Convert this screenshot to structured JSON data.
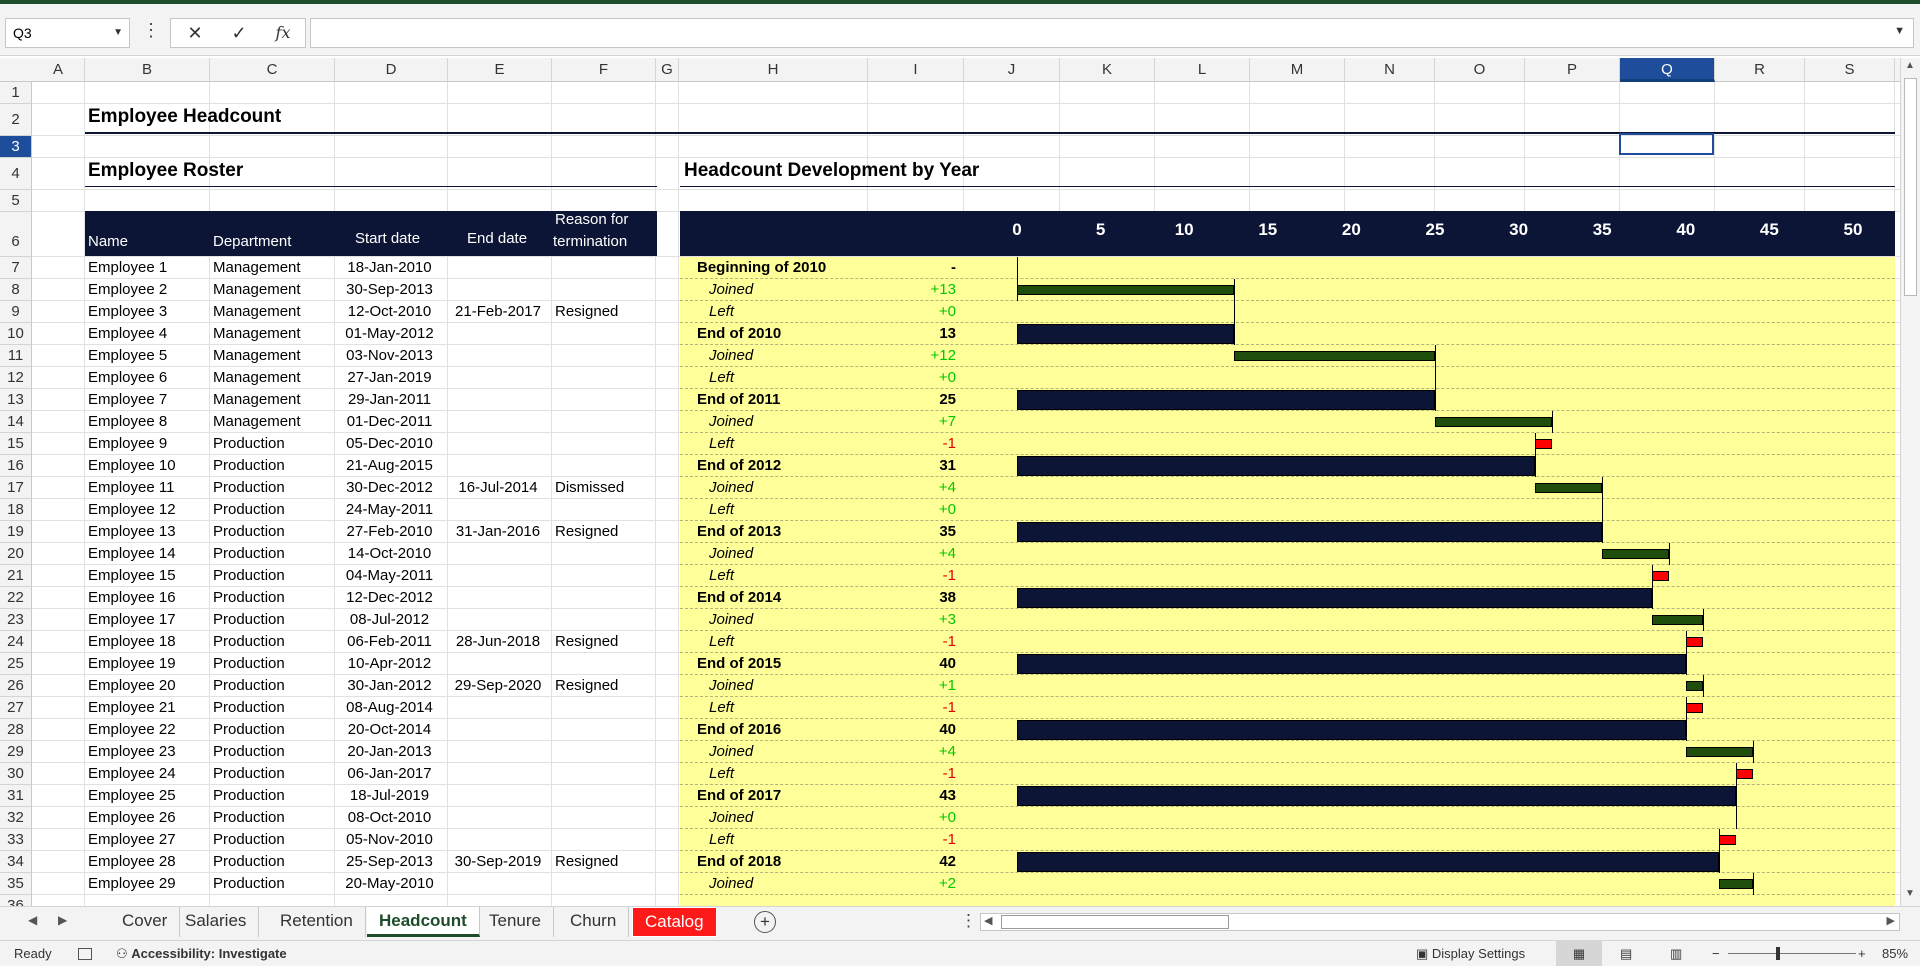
{
  "formula_bar": {
    "name_box": "Q3",
    "cancel_icon": "✕",
    "enter_icon": "✓",
    "fx_icon": "fx",
    "formula": ""
  },
  "columns": [
    "A",
    "B",
    "C",
    "D",
    "E",
    "F",
    "G",
    "H",
    "I",
    "J",
    "K",
    "L",
    "M",
    "N",
    "O",
    "P",
    "Q",
    "R",
    "S"
  ],
  "selected_column": "Q",
  "rows": [
    "1",
    "2",
    "3",
    "4",
    "5",
    "6",
    "7",
    "8",
    "9",
    "10",
    "11",
    "12",
    "13",
    "14",
    "15",
    "16",
    "17",
    "18",
    "19",
    "20",
    "21",
    "22",
    "23",
    "24",
    "25",
    "26",
    "27",
    "28",
    "29",
    "30",
    "31",
    "32",
    "33",
    "34",
    "35",
    "36"
  ],
  "selected_row": "3",
  "titles": {
    "main": "Employee Headcount",
    "roster": "Employee Roster",
    "chart": "Headcount Development by Year"
  },
  "roster_headers": {
    "name": "Name",
    "department": "Department",
    "start": "Start date",
    "end": "End date",
    "reason_1": "Reason for",
    "reason_2": "termination"
  },
  "roster": [
    {
      "name": "Employee 1",
      "dept": "Management",
      "start": "18-Jan-2010",
      "end": "",
      "reason": ""
    },
    {
      "name": "Employee 2",
      "dept": "Management",
      "start": "30-Sep-2013",
      "end": "",
      "reason": ""
    },
    {
      "name": "Employee 3",
      "dept": "Management",
      "start": "12-Oct-2010",
      "end": "21-Feb-2017",
      "reason": "Resigned"
    },
    {
      "name": "Employee 4",
      "dept": "Management",
      "start": "01-May-2012",
      "end": "",
      "reason": ""
    },
    {
      "name": "Employee 5",
      "dept": "Management",
      "start": "03-Nov-2013",
      "end": "",
      "reason": ""
    },
    {
      "name": "Employee 6",
      "dept": "Management",
      "start": "27-Jan-2019",
      "end": "",
      "reason": ""
    },
    {
      "name": "Employee 7",
      "dept": "Management",
      "start": "29-Jan-2011",
      "end": "",
      "reason": ""
    },
    {
      "name": "Employee 8",
      "dept": "Management",
      "start": "01-Dec-2011",
      "end": "",
      "reason": ""
    },
    {
      "name": "Employee 9",
      "dept": "Production",
      "start": "05-Dec-2010",
      "end": "",
      "reason": ""
    },
    {
      "name": "Employee 10",
      "dept": "Production",
      "start": "21-Aug-2015",
      "end": "",
      "reason": ""
    },
    {
      "name": "Employee 11",
      "dept": "Production",
      "start": "30-Dec-2012",
      "end": "16-Jul-2014",
      "reason": "Dismissed"
    },
    {
      "name": "Employee 12",
      "dept": "Production",
      "start": "24-May-2011",
      "end": "",
      "reason": ""
    },
    {
      "name": "Employee 13",
      "dept": "Production",
      "start": "27-Feb-2010",
      "end": "31-Jan-2016",
      "reason": "Resigned"
    },
    {
      "name": "Employee 14",
      "dept": "Production",
      "start": "14-Oct-2010",
      "end": "",
      "reason": ""
    },
    {
      "name": "Employee 15",
      "dept": "Production",
      "start": "04-May-2011",
      "end": "",
      "reason": ""
    },
    {
      "name": "Employee 16",
      "dept": "Production",
      "start": "12-Dec-2012",
      "end": "",
      "reason": ""
    },
    {
      "name": "Employee 17",
      "dept": "Production",
      "start": "08-Jul-2012",
      "end": "",
      "reason": ""
    },
    {
      "name": "Employee 18",
      "dept": "Production",
      "start": "06-Feb-2011",
      "end": "28-Jun-2018",
      "reason": "Resigned"
    },
    {
      "name": "Employee 19",
      "dept": "Production",
      "start": "10-Apr-2012",
      "end": "",
      "reason": ""
    },
    {
      "name": "Employee 20",
      "dept": "Production",
      "start": "30-Jan-2012",
      "end": "29-Sep-2020",
      "reason": "Resigned"
    },
    {
      "name": "Employee 21",
      "dept": "Production",
      "start": "08-Aug-2014",
      "end": "",
      "reason": ""
    },
    {
      "name": "Employee 22",
      "dept": "Production",
      "start": "20-Oct-2014",
      "end": "",
      "reason": ""
    },
    {
      "name": "Employee 23",
      "dept": "Production",
      "start": "20-Jan-2013",
      "end": "",
      "reason": ""
    },
    {
      "name": "Employee 24",
      "dept": "Production",
      "start": "06-Jan-2017",
      "end": "",
      "reason": ""
    },
    {
      "name": "Employee 25",
      "dept": "Production",
      "start": "18-Jul-2019",
      "end": "",
      "reason": ""
    },
    {
      "name": "Employee 26",
      "dept": "Production",
      "start": "08-Oct-2010",
      "end": "",
      "reason": ""
    },
    {
      "name": "Employee 27",
      "dept": "Production",
      "start": "05-Nov-2010",
      "end": "",
      "reason": ""
    },
    {
      "name": "Employee 28",
      "dept": "Production",
      "start": "25-Sep-2013",
      "end": "30-Sep-2019",
      "reason": "Resigned"
    },
    {
      "name": "Employee 29",
      "dept": "Production",
      "start": "20-May-2010",
      "end": "",
      "reason": ""
    }
  ],
  "chart_data": {
    "type": "bar",
    "xlim": [
      0,
      50
    ],
    "ticks": [
      "0",
      "5",
      "10",
      "15",
      "20",
      "25",
      "30",
      "35",
      "40",
      "45",
      "50"
    ],
    "rows": [
      {
        "label": "Beginning of 2010",
        "value": "-",
        "kind": "total",
        "start": 0,
        "end": 0
      },
      {
        "label": "Joined",
        "value": "+13",
        "kind": "joined",
        "start": 0,
        "end": 13
      },
      {
        "label": "Left",
        "value": "+0",
        "kind": "left",
        "start": 13,
        "end": 13
      },
      {
        "label": "End of 2010",
        "value": "13",
        "kind": "total",
        "start": 0,
        "end": 13
      },
      {
        "label": "Joined",
        "value": "+12",
        "kind": "joined",
        "start": 13,
        "end": 25
      },
      {
        "label": "Left",
        "value": "+0",
        "kind": "left",
        "start": 25,
        "end": 25
      },
      {
        "label": "End of 2011",
        "value": "25",
        "kind": "total",
        "start": 0,
        "end": 25
      },
      {
        "label": "Joined",
        "value": "+7",
        "kind": "joined",
        "start": 25,
        "end": 32
      },
      {
        "label": "Left",
        "value": "-1",
        "kind": "left",
        "start": 31,
        "end": 32
      },
      {
        "label": "End of 2012",
        "value": "31",
        "kind": "total",
        "start": 0,
        "end": 31
      },
      {
        "label": "Joined",
        "value": "+4",
        "kind": "joined",
        "start": 31,
        "end": 35
      },
      {
        "label": "Left",
        "value": "+0",
        "kind": "left",
        "start": 35,
        "end": 35
      },
      {
        "label": "End of 2013",
        "value": "35",
        "kind": "total",
        "start": 0,
        "end": 35
      },
      {
        "label": "Joined",
        "value": "+4",
        "kind": "joined",
        "start": 35,
        "end": 39
      },
      {
        "label": "Left",
        "value": "-1",
        "kind": "left",
        "start": 38,
        "end": 39
      },
      {
        "label": "End of 2014",
        "value": "38",
        "kind": "total",
        "start": 0,
        "end": 38
      },
      {
        "label": "Joined",
        "value": "+3",
        "kind": "joined",
        "start": 38,
        "end": 41
      },
      {
        "label": "Left",
        "value": "-1",
        "kind": "left",
        "start": 40,
        "end": 41
      },
      {
        "label": "End of 2015",
        "value": "40",
        "kind": "total",
        "start": 0,
        "end": 40
      },
      {
        "label": "Joined",
        "value": "+1",
        "kind": "joined",
        "start": 40,
        "end": 41
      },
      {
        "label": "Left",
        "value": "-1",
        "kind": "left",
        "start": 40,
        "end": 41
      },
      {
        "label": "End of 2016",
        "value": "40",
        "kind": "total",
        "start": 0,
        "end": 40
      },
      {
        "label": "Joined",
        "value": "+4",
        "kind": "joined",
        "start": 40,
        "end": 44
      },
      {
        "label": "Left",
        "value": "-1",
        "kind": "left",
        "start": 43,
        "end": 44
      },
      {
        "label": "End of 2017",
        "value": "43",
        "kind": "total",
        "start": 0,
        "end": 43
      },
      {
        "label": "Joined",
        "value": "+0",
        "kind": "joined",
        "start": 43,
        "end": 43
      },
      {
        "label": "Left",
        "value": "-1",
        "kind": "left",
        "start": 42,
        "end": 43
      },
      {
        "label": "End of 2018",
        "value": "42",
        "kind": "total",
        "start": 0,
        "end": 42
      },
      {
        "label": "Joined",
        "value": "+2",
        "kind": "joined",
        "start": 42,
        "end": 44
      }
    ],
    "colors": {
      "total": "#0c1536",
      "joined": "#1e4d0c",
      "left": "#ff0000"
    }
  },
  "tabs": [
    "Cover",
    "Salaries",
    "Retention",
    "Headcount",
    "Tenure",
    "Churn",
    "Catalog"
  ],
  "active_tab": "Headcount",
  "status": {
    "ready": "Ready",
    "accessibility": "Accessibility: Investigate",
    "display": "Display Settings",
    "zoom": "85%"
  }
}
